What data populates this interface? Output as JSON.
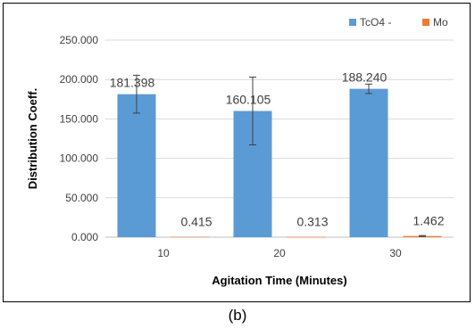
{
  "chart_data": {
    "type": "bar",
    "categories": [
      "10",
      "20",
      "30"
    ],
    "series": [
      {
        "name": "TcO4 -",
        "color": "#5b9bd5",
        "values": [
          181.398,
          160.105,
          188.24
        ],
        "labels": [
          "181.398",
          "160.105",
          "188.240"
        ],
        "error": [
          24,
          43,
          6
        ]
      },
      {
        "name": "Mo",
        "color": "#ed7d31",
        "values": [
          0.415,
          0.313,
          1.462
        ],
        "labels": [
          "0.415",
          "0.313",
          "1.462"
        ],
        "error": [
          0,
          0,
          0.6
        ]
      }
    ],
    "xlabel": "Agitation Time (Minutes)",
    "ylabel": "Distribution Coeff.",
    "ylim": [
      0,
      250
    ],
    "yticks": [
      0,
      50,
      100,
      150,
      200,
      250
    ],
    "ytick_labels": [
      "0.000",
      "50.000",
      "100.000",
      "150.000",
      "200.000",
      "250.000"
    ],
    "grid": true,
    "legend": "top-right"
  },
  "caption": "(b)"
}
